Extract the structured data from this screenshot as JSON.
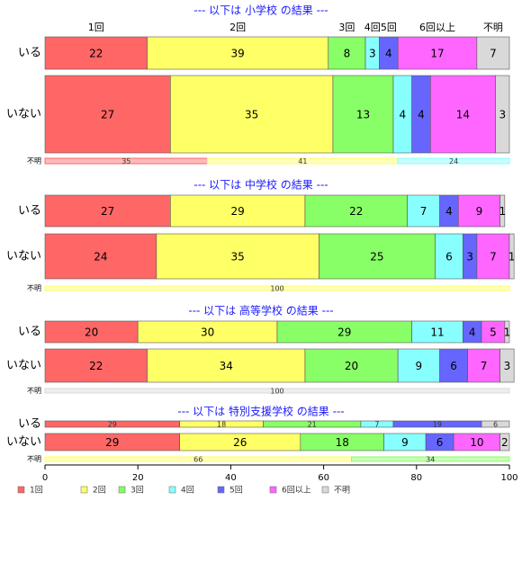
{
  "chart_data": {
    "type": "bar",
    "orientation": "horizontal-stacked-100",
    "categories_legend": [
      "1回",
      "2回",
      "3回",
      "4回",
      "5回",
      "6回以上",
      "不明"
    ],
    "colors": [
      "#ff6666",
      "#ffff66",
      "#88ff66",
      "#88ffff",
      "#6666ff",
      "#ff66ff",
      "#d9d9d9"
    ],
    "xlim": [
      0,
      100
    ],
    "xticks": [
      0,
      20,
      40,
      60,
      80,
      100
    ],
    "top_labels": [
      "1回",
      "2回",
      "3回",
      "4回",
      "5回",
      "6回以上",
      "不明"
    ],
    "sections": [
      {
        "title": "--- 以下は 小学校 の結果 ---",
        "rows": [
          {
            "label": "いる",
            "values": [
              22,
              39,
              8,
              3,
              4,
              17,
              7
            ]
          },
          {
            "label": "いない",
            "values": [
              27,
              35,
              13,
              4,
              4,
              14,
              3
            ]
          },
          {
            "label": "不明",
            "values": [
              35,
              41,
              0,
              24,
              0,
              0,
              0
            ]
          }
        ]
      },
      {
        "title": "--- 以下は 中学校 の結果 ---",
        "rows": [
          {
            "label": "いる",
            "values": [
              27,
              29,
              22,
              7,
              4,
              9,
              1
            ]
          },
          {
            "label": "いない",
            "values": [
              24,
              35,
              25,
              6,
              3,
              7,
              1
            ]
          },
          {
            "label": "不明",
            "values": [
              0,
              100,
              0,
              0,
              0,
              0,
              0
            ]
          }
        ]
      },
      {
        "title": "--- 以下は 高等学校 の結果 ---",
        "rows": [
          {
            "label": "いる",
            "values": [
              20,
              30,
              29,
              11,
              4,
              5,
              1
            ]
          },
          {
            "label": "いない",
            "values": [
              22,
              34,
              20,
              9,
              6,
              7,
              3
            ]
          },
          {
            "label": "不明",
            "values": [
              0,
              0,
              0,
              0,
              0,
              0,
              100
            ]
          }
        ]
      },
      {
        "title": "--- 以下は 特別支援学校 の結果 ---",
        "rows": [
          {
            "label": "いる",
            "values": [
              29,
              18,
              21,
              7,
              19,
              0,
              6
            ]
          },
          {
            "label": "いない",
            "values": [
              29,
              26,
              18,
              9,
              6,
              10,
              2
            ]
          },
          {
            "label": "不明",
            "values": [
              0,
              66,
              34,
              0,
              0,
              0,
              0
            ]
          }
        ]
      }
    ]
  }
}
